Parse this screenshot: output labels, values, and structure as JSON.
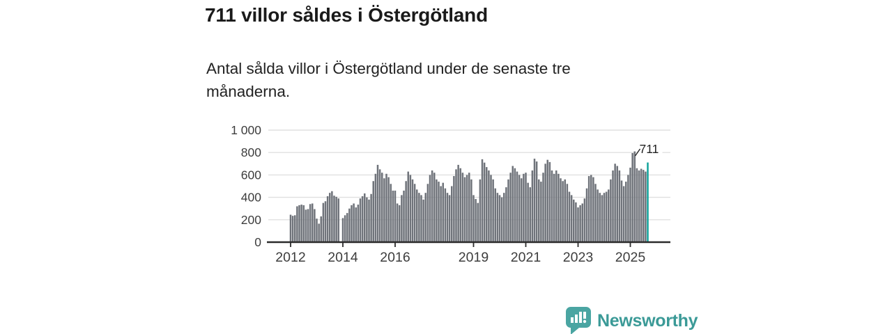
{
  "header": {
    "title": "711 villor såldes i Östergötland",
    "subtitle": "Antal sålda villor i Östergötland under de senaste tre månaderna."
  },
  "colors": {
    "bar": "#6f737a",
    "highlight": "#11a39b",
    "grid": "#e0e0e0",
    "axis_line": "#2b2b2b",
    "axis_text": "#3d3d3d",
    "annotation_text": "#222222",
    "brand_teal": "#3b9a97",
    "brand_bubble": "#4aa5a2"
  },
  "chart_data": {
    "type": "bar",
    "title": "711 villor såldes i Östergötland",
    "xlabel": "",
    "ylabel": "",
    "x_start": "2012-01",
    "x_end": "2025-09",
    "freq": "monthly",
    "ylim": [
      0,
      1000
    ],
    "grid": true,
    "yticks": [
      "0",
      "200",
      "400",
      "600",
      "800",
      "1 000"
    ],
    "ytick_values": [
      0,
      200,
      400,
      600,
      800,
      1000
    ],
    "xticks": [
      "2012",
      "2014",
      "2016",
      "2019",
      "2021",
      "2023",
      "2025"
    ],
    "xtick_month_offsets": [
      0,
      24,
      48,
      84,
      108,
      132,
      156
    ],
    "highlight_index": 164,
    "annotation": {
      "text": "711",
      "month_index": 164
    },
    "values": [
      245,
      235,
      240,
      320,
      330,
      335,
      330,
      290,
      295,
      340,
      345,
      295,
      210,
      165,
      230,
      350,
      365,
      410,
      440,
      455,
      415,
      405,
      390,
      null,
      215,
      240,
      260,
      300,
      330,
      345,
      310,
      335,
      390,
      410,
      435,
      400,
      380,
      430,
      545,
      610,
      690,
      650,
      620,
      570,
      610,
      580,
      520,
      460,
      460,
      345,
      330,
      420,
      460,
      545,
      630,
      600,
      560,
      520,
      470,
      440,
      420,
      380,
      440,
      520,
      600,
      640,
      620,
      560,
      540,
      500,
      530,
      480,
      440,
      420,
      500,
      590,
      650,
      690,
      660,
      620,
      580,
      600,
      620,
      560,
      420,
      385,
      350,
      560,
      740,
      710,
      670,
      640,
      600,
      560,
      480,
      440,
      420,
      400,
      440,
      490,
      560,
      620,
      680,
      660,
      630,
      600,
      570,
      610,
      620,
      530,
      490,
      640,
      745,
      720,
      560,
      540,
      620,
      700,
      735,
      715,
      640,
      610,
      640,
      610,
      570,
      545,
      560,
      520,
      450,
      420,
      380,
      355,
      310,
      330,
      345,
      390,
      480,
      590,
      600,
      580,
      520,
      470,
      440,
      420,
      440,
      450,
      470,
      560,
      640,
      700,
      680,
      640,
      550,
      500,
      540,
      600,
      665,
      795,
      810,
      660,
      640,
      655,
      645,
      630,
      711
    ]
  },
  "logo": {
    "text": "Newsworthy",
    "icon": "bar-chart-speech-bubble"
  }
}
